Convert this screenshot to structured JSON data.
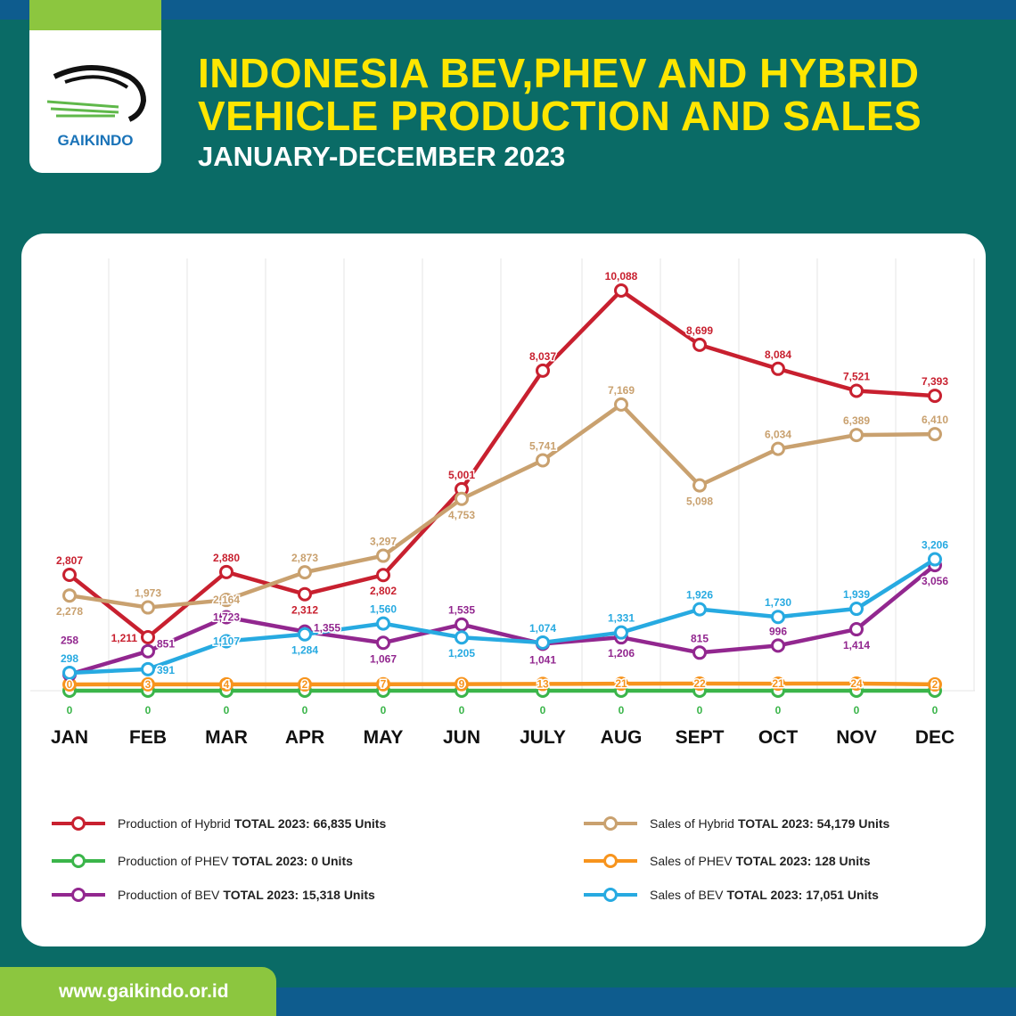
{
  "header": {
    "logo_text": "GAIKINDO",
    "title_line1": "INDONESIA BEV,PHEV AND HYBRID",
    "title_line2": "VEHICLE PRODUCTION AND SALES",
    "subtitle": "JANUARY-DECEMBER 2023"
  },
  "footer": {
    "url": "www.gaikindo.or.id"
  },
  "chart_data": {
    "type": "line",
    "categories": [
      "JAN",
      "FEB",
      "MAR",
      "APR",
      "MAY",
      "JUN",
      "JULY",
      "AUG",
      "SEPT",
      "OCT",
      "NOV",
      "DEC"
    ],
    "grid": "vertical",
    "series": [
      {
        "name": "Production of Hybrid",
        "total_label": "TOTAL 2023: 66,835 Units",
        "color": "#c8202f",
        "values": [
          2807,
          1211,
          2880,
          2312,
          2802,
          5001,
          8037,
          10088,
          8699,
          8084,
          7521,
          7393
        ]
      },
      {
        "name": "Sales of Hybrid",
        "total_label": "TOTAL 2023: 54,179 Units",
        "color": "#c9a16f",
        "values": [
          2278,
          1973,
          2164,
          2873,
          3297,
          4753,
          5741,
          7169,
          5098,
          6034,
          6389,
          6410
        ]
      },
      {
        "name": "Production of PHEV",
        "total_label": "TOTAL 2023: 0 Units",
        "color": "#3bb54a",
        "values": [
          0,
          0,
          0,
          0,
          0,
          0,
          0,
          0,
          0,
          0,
          0,
          0
        ]
      },
      {
        "name": "Sales of PHEV",
        "total_label": "TOTAL 2023: 128 Units",
        "color": "#f7941d",
        "values": [
          0,
          3,
          4,
          2,
          7,
          9,
          13,
          21,
          22,
          21,
          24,
          2
        ]
      },
      {
        "name": "Production of BEV",
        "total_label": "TOTAL 2023: 15,318 Units",
        "color": "#92278f",
        "values": [
          258,
          851,
          1723,
          1355,
          1067,
          1535,
          1041,
          1206,
          815,
          996,
          1414,
          3056
        ]
      },
      {
        "name": "Sales of BEV",
        "total_label": "TOTAL 2023: 17,051 Units",
        "color": "#27aae1",
        "values": [
          298,
          391,
          1107,
          1284,
          1560,
          1205,
          1074,
          1331,
          1926,
          1730,
          1939,
          3206
        ]
      }
    ]
  }
}
